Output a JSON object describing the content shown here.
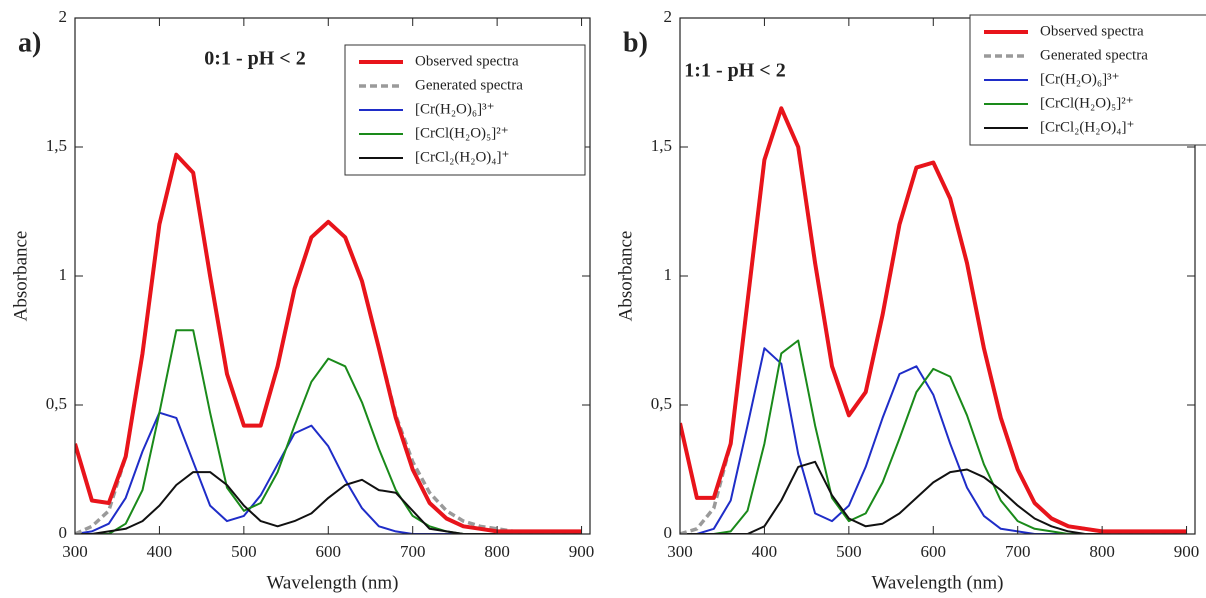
{
  "chart_data": [
    {
      "type": "line",
      "panel_label": "a)",
      "annotation": "0:1 - pH < 2",
      "annotation_color": "#e8141b",
      "xlabel": "Wavelength (nm)",
      "ylabel": "Absorbance",
      "legend": "upper right",
      "x": [
        300,
        320,
        340,
        360,
        380,
        400,
        420,
        440,
        460,
        480,
        500,
        520,
        540,
        560,
        580,
        600,
        620,
        640,
        660,
        680,
        700,
        720,
        740,
        760,
        780,
        800,
        820,
        840,
        860,
        880,
        900
      ],
      "xlim": [
        300,
        910
      ],
      "xticks": [
        300,
        400,
        500,
        600,
        700,
        800,
        900
      ],
      "ylim": [
        0,
        2
      ],
      "yticks": [
        0,
        {
          "value": 0.5,
          "label": "0,5"
        },
        1,
        {
          "value": 1.5,
          "label": "1,5"
        },
        2
      ],
      "series": [
        {
          "name": "Observed spectra",
          "color": "#e8141b",
          "style": "bold",
          "values": [
            0.35,
            0.13,
            0.12,
            0.3,
            0.7,
            1.2,
            1.47,
            1.4,
            1.0,
            0.62,
            0.42,
            0.42,
            0.65,
            0.95,
            1.15,
            1.21,
            1.15,
            0.98,
            0.72,
            0.45,
            0.25,
            0.12,
            0.06,
            0.03,
            0.02,
            0.01,
            0.01,
            0.01,
            0.01,
            0.01,
            0.01
          ]
        },
        {
          "name": "Generated spectra",
          "color": "#9a9a9a",
          "style": "dashed",
          "values": [
            0,
            0.03,
            0.09,
            0.3,
            0.7,
            1.2,
            1.47,
            1.4,
            1.0,
            0.62,
            0.42,
            0.42,
            0.65,
            0.95,
            1.15,
            1.21,
            1.15,
            0.98,
            0.72,
            0.46,
            0.28,
            0.16,
            0.09,
            0.05,
            0.03,
            0.02,
            0.01,
            0.01,
            0.01,
            0.01,
            0.01
          ]
        },
        {
          "name": "[Cr(H₂O)₆]³⁺",
          "color": "#1f2dc8",
          "style": "solid",
          "values": [
            0,
            0.01,
            0.04,
            0.14,
            0.32,
            0.47,
            0.45,
            0.28,
            0.11,
            0.05,
            0.07,
            0.15,
            0.27,
            0.39,
            0.42,
            0.34,
            0.21,
            0.1,
            0.03,
            0.01,
            0,
            0,
            0,
            0,
            0,
            0,
            0,
            0,
            0,
            0,
            0
          ]
        },
        {
          "name": "[CrCl(H₂O)₅]²⁺",
          "color": "#1a8a1a",
          "style": "solid",
          "values": [
            0,
            0,
            0,
            0.04,
            0.17,
            0.47,
            0.79,
            0.79,
            0.47,
            0.18,
            0.09,
            0.12,
            0.24,
            0.42,
            0.59,
            0.68,
            0.65,
            0.51,
            0.33,
            0.17,
            0.07,
            0.03,
            0.01,
            0,
            0,
            0,
            0,
            0,
            0,
            0,
            0
          ]
        },
        {
          "name": "[CrCl₂(H₂O)₄]⁺",
          "color": "#111111",
          "style": "solid",
          "values": [
            0,
            0,
            0.01,
            0.02,
            0.05,
            0.11,
            0.19,
            0.24,
            0.24,
            0.19,
            0.11,
            0.05,
            0.03,
            0.05,
            0.08,
            0.14,
            0.19,
            0.21,
            0.17,
            0.16,
            0.09,
            0.02,
            0.01,
            0,
            0,
            0,
            0,
            0,
            0,
            0,
            0
          ]
        }
      ]
    },
    {
      "type": "line",
      "panel_label": "b)",
      "annotation": "1:1 - pH < 2",
      "annotation_color": "#e8141b",
      "xlabel": "Wavelength (nm)",
      "ylabel": "Absorbance",
      "legend": "upper right",
      "x": [
        300,
        320,
        340,
        360,
        380,
        400,
        420,
        440,
        460,
        480,
        500,
        520,
        540,
        560,
        580,
        600,
        620,
        640,
        660,
        680,
        700,
        720,
        740,
        760,
        780,
        800,
        820,
        840,
        860,
        880,
        900
      ],
      "xlim": [
        300,
        910
      ],
      "xticks": [
        300,
        400,
        500,
        600,
        700,
        800,
        900
      ],
      "ylim": [
        0,
        2
      ],
      "yticks": [
        0,
        {
          "value": 0.5,
          "label": "0,5"
        },
        1,
        {
          "value": 1.5,
          "label": "1,5"
        },
        2
      ],
      "series": [
        {
          "name": "Observed spectra",
          "color": "#e8141b",
          "style": "bold",
          "values": [
            0.43,
            0.14,
            0.14,
            0.35,
            0.9,
            1.45,
            1.65,
            1.5,
            1.05,
            0.65,
            0.46,
            0.55,
            0.85,
            1.2,
            1.42,
            1.44,
            1.3,
            1.05,
            0.72,
            0.45,
            0.25,
            0.12,
            0.06,
            0.03,
            0.02,
            0.01,
            0.01,
            0.01,
            0.01,
            0.01,
            0.01
          ]
        },
        {
          "name": "Generated spectra",
          "color": "#9a9a9a",
          "style": "dashed",
          "values": [
            0,
            0.02,
            0.1,
            0.35,
            0.9,
            1.45,
            1.65,
            1.5,
            1.05,
            0.65,
            0.46,
            0.55,
            0.85,
            1.2,
            1.42,
            1.44,
            1.3,
            1.05,
            0.72,
            0.45,
            0.25,
            0.12,
            0.06,
            0.03,
            0.02,
            0.01,
            0.01,
            0.01,
            0.01,
            0.01,
            0.01
          ]
        },
        {
          "name": "[Cr(H₂O)₆]³⁺",
          "color": "#1f2dc8",
          "style": "solid",
          "values": [
            0,
            0,
            0.02,
            0.13,
            0.42,
            0.72,
            0.66,
            0.31,
            0.08,
            0.05,
            0.11,
            0.26,
            0.45,
            0.62,
            0.65,
            0.54,
            0.35,
            0.18,
            0.07,
            0.02,
            0.01,
            0,
            0,
            0,
            0,
            0,
            0,
            0,
            0,
            0,
            0
          ]
        },
        {
          "name": "[CrCl(H₂O)₅]²⁺",
          "color": "#1a8a1a",
          "style": "solid",
          "values": [
            0,
            0,
            0,
            0.01,
            0.09,
            0.35,
            0.7,
            0.75,
            0.42,
            0.14,
            0.05,
            0.08,
            0.2,
            0.37,
            0.55,
            0.64,
            0.61,
            0.46,
            0.27,
            0.13,
            0.05,
            0.02,
            0.01,
            0,
            0,
            0,
            0,
            0,
            0,
            0,
            0
          ]
        },
        {
          "name": "[CrCl₂(H₂O)₄]⁺",
          "color": "#111111",
          "style": "solid",
          "values": [
            0,
            0,
            0,
            0,
            0,
            0.03,
            0.13,
            0.26,
            0.28,
            0.15,
            0.06,
            0.03,
            0.04,
            0.08,
            0.14,
            0.2,
            0.24,
            0.25,
            0.22,
            0.17,
            0.11,
            0.06,
            0.03,
            0.01,
            0,
            0,
            0,
            0,
            0,
            0,
            0
          ]
        }
      ]
    }
  ]
}
